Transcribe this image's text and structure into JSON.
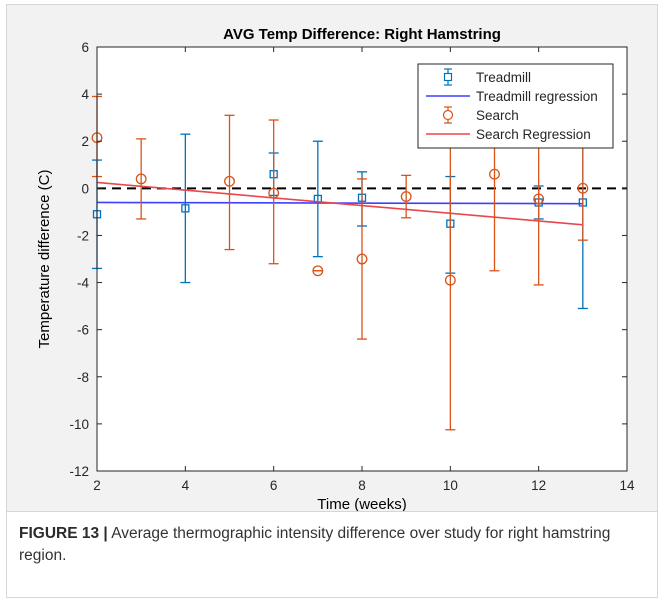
{
  "chart_data": {
    "type": "scatter",
    "title": "AVG Temp Difference: Right Hamstring",
    "xlabel": "Time (weeks)",
    "ylabel": "Temperature difference (C)",
    "xlim": [
      2,
      14
    ],
    "ylim": [
      -12,
      6
    ],
    "xticks": [
      "2",
      "4",
      "6",
      "8",
      "10",
      "12",
      "14"
    ],
    "yticks": [
      "6",
      "4",
      "2",
      "0",
      "-2",
      "-4",
      "-6",
      "-8",
      "-10",
      "-12"
    ],
    "legend_position": "top-right",
    "reference_line": {
      "y": 0,
      "style": "dashed",
      "color": "#000000"
    },
    "series": [
      {
        "name": "Treadmill",
        "marker": "square",
        "color": "#0072bd",
        "points": [
          {
            "x": 2,
            "y": -1.1,
            "lower": -3.4,
            "upper": 1.2
          },
          {
            "x": 4,
            "y": -0.85,
            "lower": -4.0,
            "upper": 2.3
          },
          {
            "x": 6,
            "y": 0.6,
            "lower": -0.3,
            "upper": 1.5
          },
          {
            "x": 7,
            "y": -0.45,
            "lower": -2.9,
            "upper": 2.0
          },
          {
            "x": 8,
            "y": -0.4,
            "lower": -1.6,
            "upper": 0.7
          },
          {
            "x": 10,
            "y": -1.5,
            "lower": -3.6,
            "upper": 0.5
          },
          {
            "x": 12,
            "y": -0.6,
            "lower": -1.3,
            "upper": 0.1
          },
          {
            "x": 13,
            "y": -0.6,
            "lower": -5.1,
            "upper": 3.9
          }
        ]
      },
      {
        "name": "Treadmill regression",
        "line": true,
        "color": "#3f3fff",
        "x": [
          2,
          13
        ],
        "y": [
          -0.6,
          -0.65
        ]
      },
      {
        "name": "Search",
        "marker": "circle",
        "color": "#d95319",
        "points": [
          {
            "x": 2,
            "y": 2.15,
            "lower": 0.5,
            "upper": 3.9
          },
          {
            "x": 3,
            "y": 0.4,
            "lower": -1.3,
            "upper": 2.1
          },
          {
            "x": 5,
            "y": 0.3,
            "lower": -2.6,
            "upper": 3.1
          },
          {
            "x": 6,
            "y": -0.2,
            "lower": -3.2,
            "upper": 2.9
          },
          {
            "x": 7,
            "y": -3.5,
            "lower": -3.5,
            "upper": -3.5
          },
          {
            "x": 8,
            "y": -3.0,
            "lower": -6.4,
            "upper": 0.4
          },
          {
            "x": 9,
            "y": -0.35,
            "lower": -1.25,
            "upper": 0.55
          },
          {
            "x": 10,
            "y": -3.9,
            "lower": -10.25,
            "upper": 2.45
          },
          {
            "x": 11,
            "y": 0.6,
            "lower": -3.5,
            "upper": 4.7
          },
          {
            "x": 12,
            "y": -0.45,
            "lower": -4.1,
            "upper": 3.2
          },
          {
            "x": 13,
            "y": 0.0,
            "lower": -2.2,
            "upper": 3.8
          }
        ]
      },
      {
        "name": "Search Regression",
        "line": true,
        "color": "#e8474c",
        "x": [
          2,
          13
        ],
        "y": [
          0.25,
          -1.55
        ]
      }
    ]
  },
  "caption": {
    "label": "FIGURE 13 |",
    "text": " Average thermographic intensity difference over study for right hamstring region."
  }
}
